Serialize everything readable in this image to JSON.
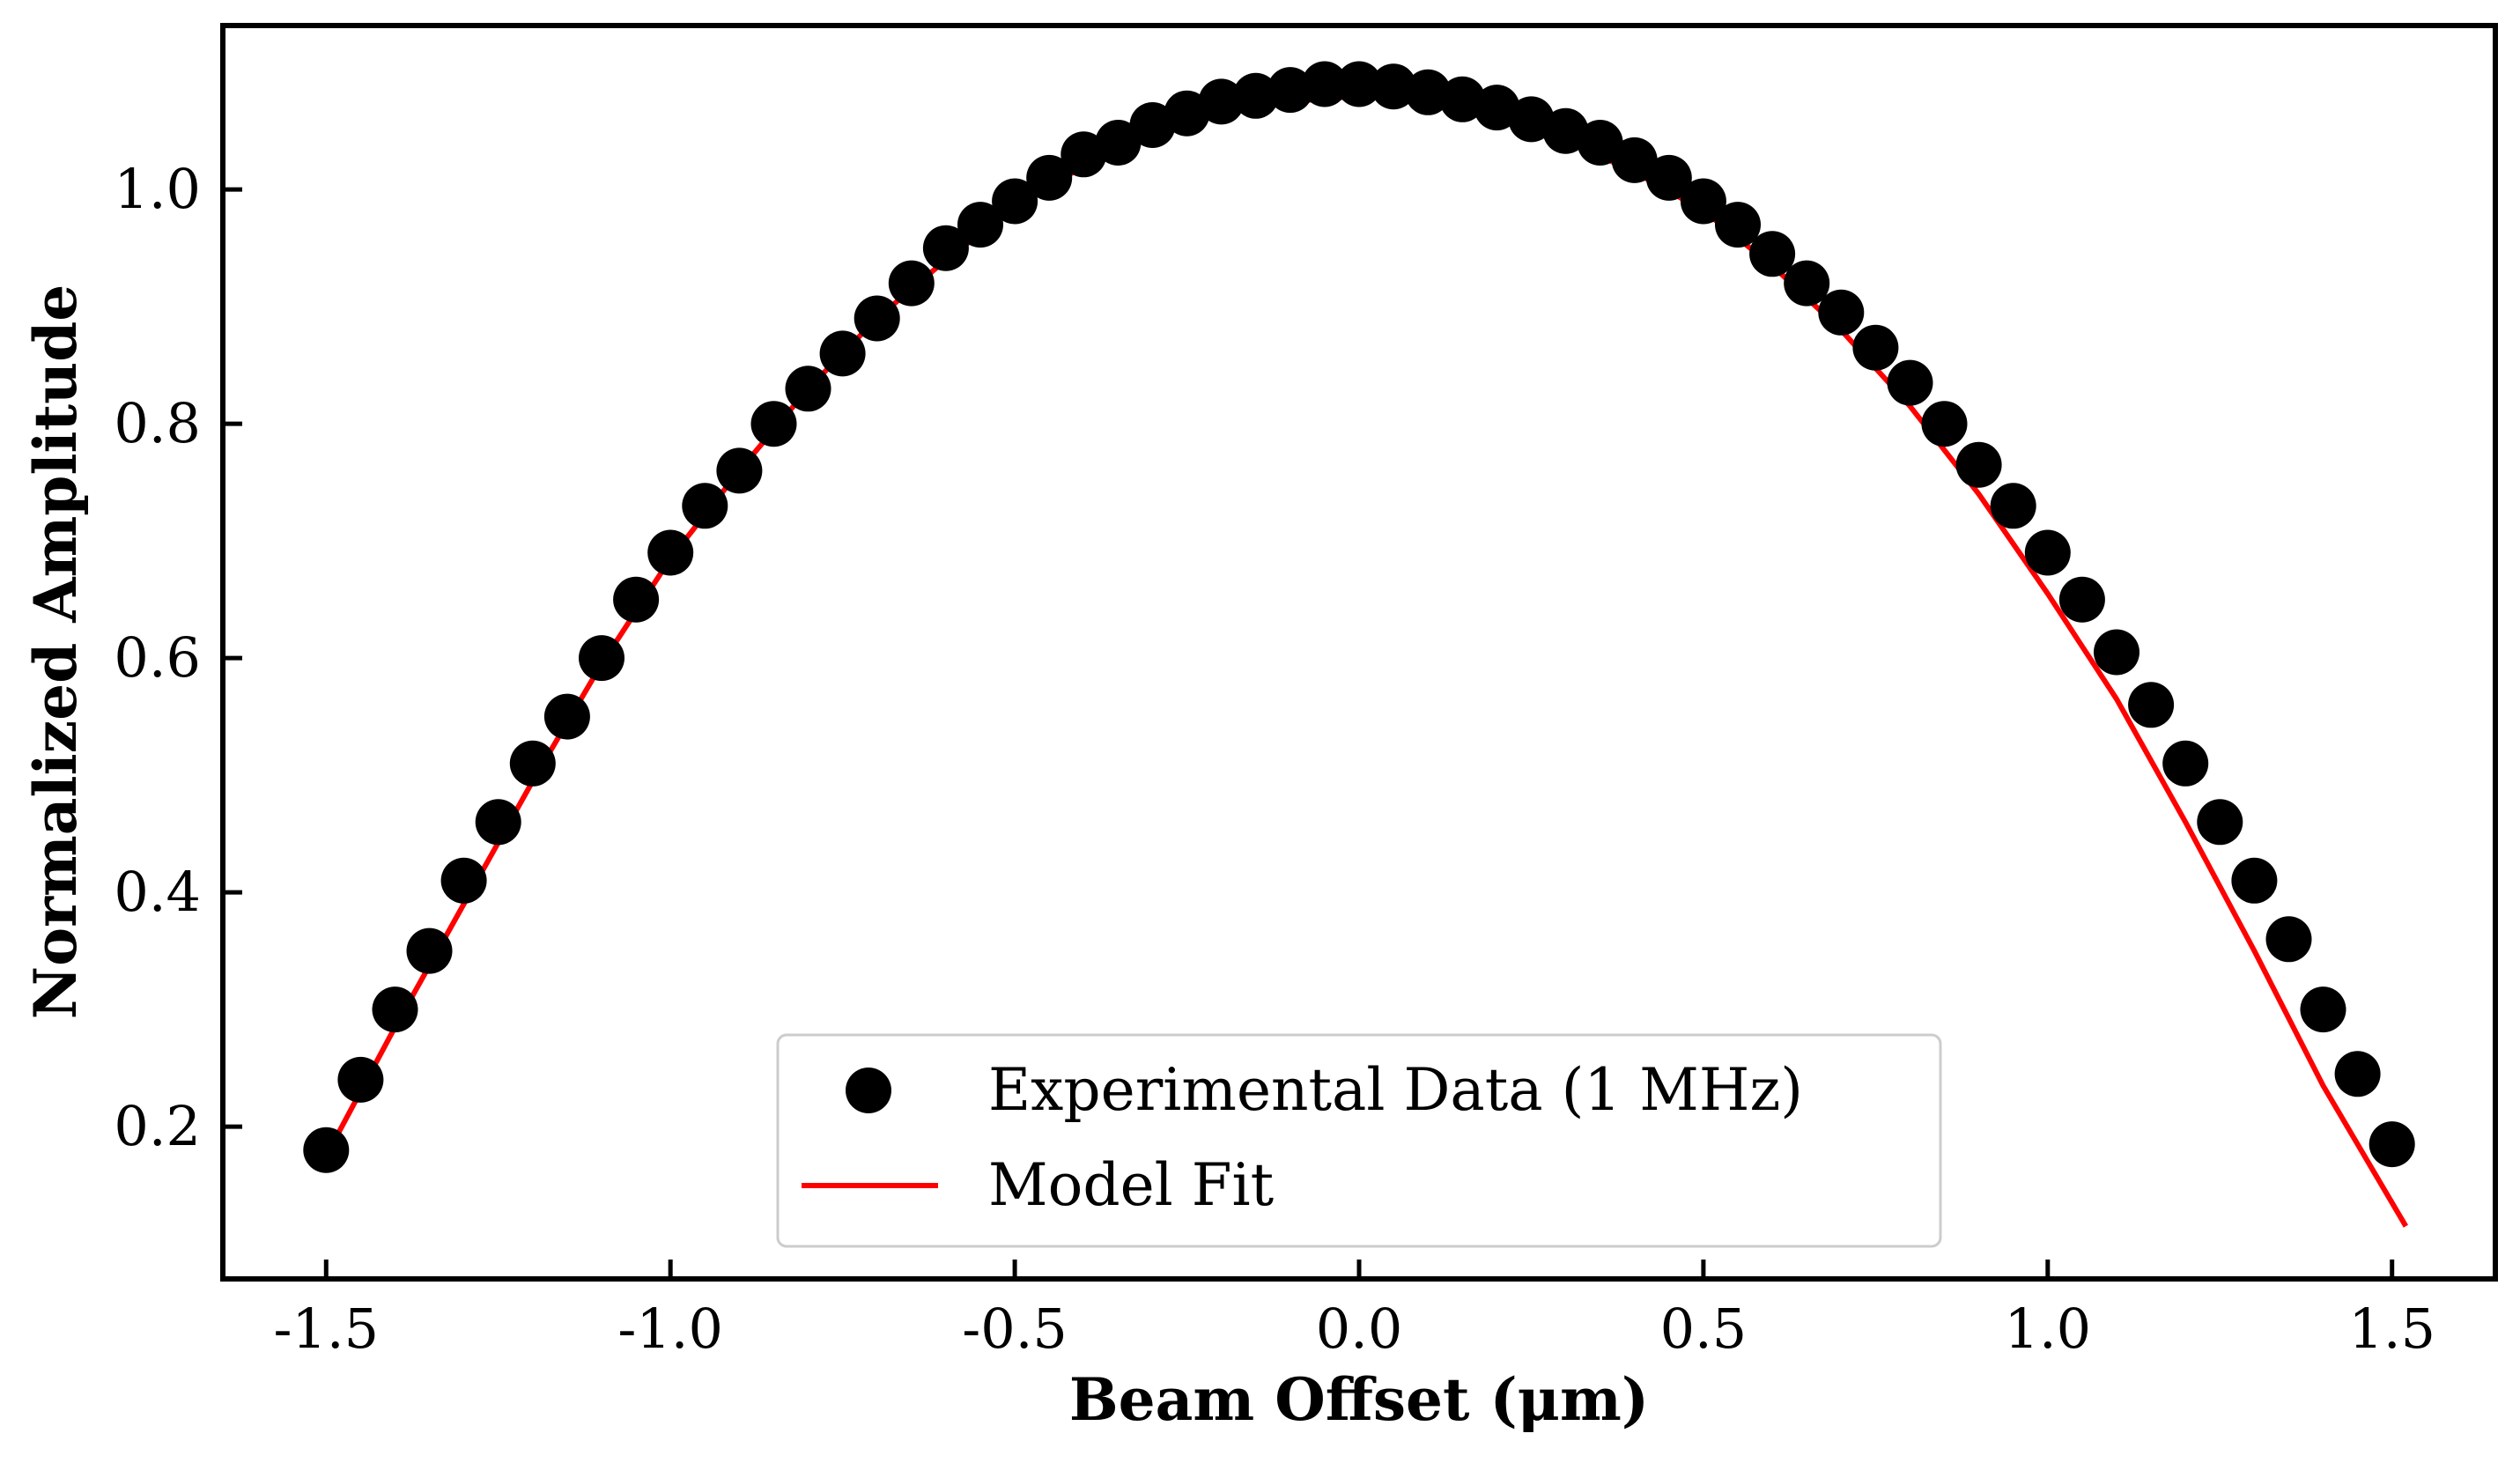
{
  "chart_data": {
    "type": "scatter",
    "title": "",
    "xlabel": "Beam Offset (μm)",
    "ylabel": "Normalized Amplitude",
    "xlim": [
      -1.65,
      1.65
    ],
    "ylim": [
      0.07,
      1.14
    ],
    "xticks": [
      -1.5,
      -1.0,
      -0.5,
      0.0,
      0.5,
      1.0,
      1.5
    ],
    "xtick_labels": [
      "-1.5",
      "-1.0",
      "-0.5",
      "0.0",
      "0.5",
      "1.0",
      "1.5"
    ],
    "yticks": [
      0.2,
      0.4,
      0.6,
      0.8,
      1.0
    ],
    "ytick_labels": [
      "0.2",
      "0.4",
      "0.6",
      "0.8",
      "1.0"
    ],
    "grid": false,
    "legend_position": "lower-center",
    "colors": {
      "data": "#000000",
      "fit": "#ff0000"
    },
    "series": [
      {
        "name": "Experimental Data (1 MHz)",
        "kind": "scatter",
        "x": [
          -1.5,
          -1.45,
          -1.4,
          -1.35,
          -1.3,
          -1.25,
          -1.2,
          -1.15,
          -1.1,
          -1.05,
          -1.0,
          -0.95,
          -0.9,
          -0.85,
          -0.8,
          -0.75,
          -0.7,
          -0.65,
          -0.6,
          -0.55,
          -0.5,
          -0.45,
          -0.4,
          -0.35,
          -0.3,
          -0.25,
          -0.2,
          -0.15,
          -0.1,
          -0.05,
          0.0,
          0.05,
          0.1,
          0.15,
          0.2,
          0.25,
          0.3,
          0.35,
          0.4,
          0.45,
          0.5,
          0.55,
          0.6,
          0.65,
          0.7,
          0.75,
          0.8,
          0.85,
          0.9,
          0.95,
          1.0,
          1.05,
          1.1,
          1.15,
          1.2,
          1.25,
          1.3,
          1.35,
          1.4,
          1.45,
          1.5
        ],
        "y": [
          0.18,
          0.24,
          0.3,
          0.35,
          0.41,
          0.46,
          0.51,
          0.55,
          0.6,
          0.65,
          0.69,
          0.73,
          0.76,
          0.8,
          0.83,
          0.86,
          0.89,
          0.92,
          0.95,
          0.97,
          0.99,
          1.01,
          1.03,
          1.04,
          1.055,
          1.065,
          1.075,
          1.08,
          1.085,
          1.09,
          1.09,
          1.088,
          1.083,
          1.077,
          1.07,
          1.06,
          1.05,
          1.04,
          1.025,
          1.01,
          0.99,
          0.97,
          0.945,
          0.92,
          0.895,
          0.865,
          0.835,
          0.8,
          0.765,
          0.73,
          0.69,
          0.65,
          0.605,
          0.56,
          0.51,
          0.46,
          0.41,
          0.36,
          0.3,
          0.245,
          0.185
        ]
      },
      {
        "name": "Model Fit",
        "kind": "line",
        "x": [
          -1.5,
          -1.4,
          -1.3,
          -1.2,
          -1.1,
          -1.0,
          -0.9,
          -0.8,
          -0.7,
          -0.6,
          -0.5,
          -0.4,
          -0.3,
          -0.2,
          -0.1,
          0.0,
          0.1,
          0.2,
          0.3,
          0.4,
          0.5,
          0.6,
          0.7,
          0.8,
          0.9,
          1.0,
          1.1,
          1.2,
          1.3,
          1.4,
          1.52
        ],
        "y": [
          0.175,
          0.285,
          0.39,
          0.495,
          0.595,
          0.685,
          0.76,
          0.83,
          0.89,
          0.94,
          0.985,
          1.02,
          1.045,
          1.065,
          1.075,
          1.08,
          1.075,
          1.063,
          1.042,
          1.015,
          0.982,
          0.935,
          0.88,
          0.815,
          0.74,
          0.655,
          0.565,
          0.46,
          0.35,
          0.235,
          0.115
        ]
      }
    ]
  }
}
